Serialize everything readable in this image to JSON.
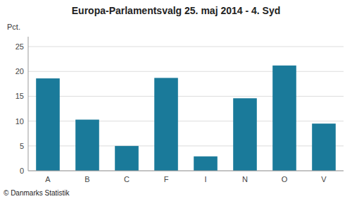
{
  "chart_data": {
    "type": "bar",
    "title": "Europa-Parlamentsvalg 25. maj 2014 - 4. Syd",
    "ylabel": "Pct.",
    "annotations": [
      "© Danmarks Statistik"
    ],
    "categories": [
      "A",
      "B",
      "C",
      "F",
      "I",
      "N",
      "O",
      "V"
    ],
    "values": [
      18.6,
      10.3,
      5.0,
      18.7,
      2.9,
      14.6,
      21.2,
      9.5
    ],
    "color": "#1a7a9a",
    "ylim": [
      0,
      27
    ],
    "yticks": [
      0,
      5,
      10,
      15,
      20,
      25
    ],
    "grid": true
  }
}
